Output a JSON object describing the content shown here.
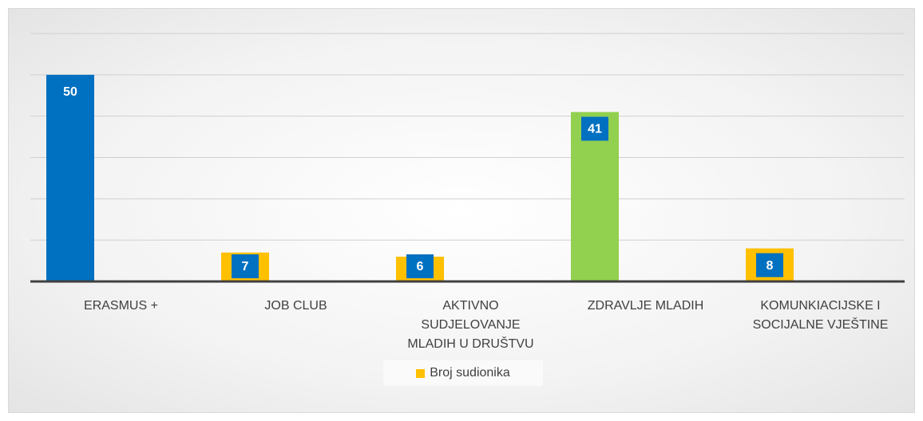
{
  "chart_data": {
    "type": "bar",
    "categories": [
      "ERASMUS +",
      "JOB CLUB",
      "AKTIVNO SUDJELOVANJE MLADIH U DRUŠTVU",
      "ZDRAVLJE MLADIH",
      "KOMUNKIACIJSKE I SOCIJALNE VJEŠTINE"
    ],
    "series": [
      {
        "name": "Broj sudionika",
        "color": "#ffc000",
        "values": [
          50,
          7,
          6,
          41,
          8
        ]
      }
    ],
    "colors": [
      "#0070c0",
      "#ffc000",
      "#ffc000",
      "#92d050",
      "#ffc000"
    ],
    "ylim": [
      0,
      60
    ],
    "yticks": [
      0,
      10,
      20,
      30,
      40,
      50,
      60
    ],
    "grid": true,
    "legend": "bottom"
  }
}
